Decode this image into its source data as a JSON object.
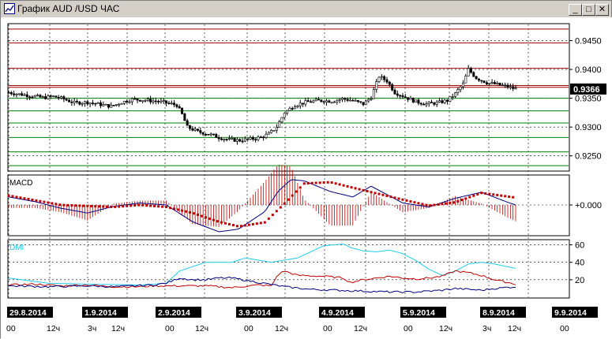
{
  "window": {
    "title": "График AUD /USD ЧАС",
    "minimize_label": "_",
    "maximize_label": "□",
    "close_label": "✕"
  },
  "colors": {
    "background": "#ffffff",
    "candles": "#000000",
    "resistance": "#a00000",
    "support": "#008000",
    "macd_line": "#000080",
    "macd_signal": "#c00000",
    "dmi_adx": "#22ccee",
    "dmi_plus": "#c00000",
    "dmi_minus": "#000080",
    "bubble": "#000000"
  },
  "chart_data": [
    {
      "type": "candlestick",
      "panel": "price",
      "ylim": [
        0.9225,
        0.9478
      ],
      "yticks": [
        0.925,
        0.93,
        0.935,
        0.94,
        0.945
      ],
      "ytick_labels": [
        "0.9250",
        "0.9300",
        "0.9350",
        "0.9400",
        "0.9450"
      ],
      "current_price": 0.9366,
      "current_price_label": "0.9366",
      "resistance_levels": [
        0.947,
        0.9446,
        0.9402,
        0.9372,
        0.9369
      ],
      "support_levels": [
        0.935,
        0.9328,
        0.9307,
        0.9282,
        0.9257,
        0.9233
      ],
      "close_path": [
        [
          0,
          0.936
        ],
        [
          8,
          0.9357
        ],
        [
          18,
          0.9354
        ],
        [
          26,
          0.9351
        ],
        [
          34,
          0.9353
        ],
        [
          40,
          0.935
        ],
        [
          50,
          0.9342
        ],
        [
          60,
          0.9343
        ],
        [
          70,
          0.9339
        ],
        [
          78,
          0.9336
        ],
        [
          86,
          0.9343
        ],
        [
          94,
          0.9348
        ],
        [
          102,
          0.9347
        ],
        [
          112,
          0.9345
        ],
        [
          120,
          0.9342
        ],
        [
          128,
          0.9338
        ],
        [
          132,
          0.9322
        ],
        [
          136,
          0.93
        ],
        [
          144,
          0.9292
        ],
        [
          152,
          0.9288
        ],
        [
          160,
          0.9282
        ],
        [
          168,
          0.9278
        ],
        [
          176,
          0.9277
        ],
        [
          184,
          0.9279
        ],
        [
          192,
          0.9282
        ],
        [
          198,
          0.9288
        ],
        [
          204,
          0.93
        ],
        [
          210,
          0.9325
        ],
        [
          218,
          0.9338
        ],
        [
          226,
          0.9343
        ],
        [
          236,
          0.9346
        ],
        [
          246,
          0.9345
        ],
        [
          254,
          0.9349
        ],
        [
          262,
          0.9346
        ],
        [
          270,
          0.934
        ],
        [
          276,
          0.9352
        ],
        [
          282,
          0.9388
        ],
        [
          288,
          0.938
        ],
        [
          294,
          0.936
        ],
        [
          302,
          0.9352
        ],
        [
          310,
          0.9344
        ],
        [
          318,
          0.934
        ],
        [
          326,
          0.9342
        ],
        [
          334,
          0.9346
        ],
        [
          340,
          0.9358
        ],
        [
          346,
          0.9375
        ],
        [
          350,
          0.94
        ],
        [
          356,
          0.9385
        ],
        [
          364,
          0.9377
        ],
        [
          372,
          0.9374
        ],
        [
          380,
          0.937
        ],
        [
          386,
          0.9366
        ]
      ]
    },
    {
      "type": "line",
      "panel": "macd",
      "title": "MACD",
      "ytick_labels": [
        "+0.000"
      ],
      "macd_path": [
        [
          0,
          1.2
        ],
        [
          20,
          0.5
        ],
        [
          40,
          -0.5
        ],
        [
          60,
          -1.2
        ],
        [
          80,
          -0.2
        ],
        [
          100,
          0.3
        ],
        [
          120,
          0.0
        ],
        [
          140,
          -2.5
        ],
        [
          160,
          -4.0
        ],
        [
          175,
          -3.6
        ],
        [
          195,
          -1.0
        ],
        [
          205,
          2.0
        ],
        [
          215,
          3.8
        ],
        [
          225,
          3.6
        ],
        [
          245,
          2.0
        ],
        [
          262,
          1.2
        ],
        [
          276,
          2.8
        ],
        [
          300,
          0.3
        ],
        [
          320,
          -0.3
        ],
        [
          340,
          1.0
        ],
        [
          360,
          1.9
        ],
        [
          380,
          0.4
        ],
        [
          386,
          0.0
        ]
      ],
      "signal_path": [
        [
          0,
          1.4
        ],
        [
          40,
          0.0
        ],
        [
          80,
          -0.3
        ],
        [
          100,
          0.0
        ],
        [
          120,
          -0.3
        ],
        [
          140,
          -1.2
        ],
        [
          160,
          -2.5
        ],
        [
          175,
          -3.2
        ],
        [
          195,
          -2.6
        ],
        [
          210,
          0.2
        ],
        [
          225,
          3.2
        ],
        [
          245,
          3.4
        ],
        [
          270,
          2.2
        ],
        [
          300,
          0.8
        ],
        [
          320,
          -0.1
        ],
        [
          340,
          0.4
        ],
        [
          360,
          1.8
        ],
        [
          386,
          1.1
        ]
      ]
    },
    {
      "type": "line",
      "panel": "dmi",
      "title": "DMI",
      "ylim": [
        0,
        65
      ],
      "yticks": [
        20,
        40,
        60
      ],
      "ytick_labels": [
        "20",
        "40",
        "60"
      ],
      "adx_path": [
        [
          0,
          22
        ],
        [
          30,
          16
        ],
        [
          60,
          15
        ],
        [
          100,
          14
        ],
        [
          120,
          16
        ],
        [
          130,
          30
        ],
        [
          150,
          40
        ],
        [
          170,
          40
        ],
        [
          180,
          45
        ],
        [
          200,
          40
        ],
        [
          220,
          45
        ],
        [
          240,
          59
        ],
        [
          255,
          61
        ],
        [
          260,
          57
        ],
        [
          270,
          53
        ],
        [
          280,
          52
        ],
        [
          290,
          54
        ],
        [
          300,
          50
        ],
        [
          310,
          42
        ],
        [
          320,
          32
        ],
        [
          330,
          25
        ],
        [
          340,
          30
        ],
        [
          350,
          38
        ],
        [
          360,
          40
        ],
        [
          370,
          38
        ],
        [
          386,
          33
        ]
      ],
      "plus_path": [
        [
          0,
          14
        ],
        [
          20,
          15
        ],
        [
          40,
          13
        ],
        [
          60,
          14
        ],
        [
          80,
          12
        ],
        [
          100,
          12
        ],
        [
          110,
          13
        ],
        [
          130,
          13
        ],
        [
          150,
          13
        ],
        [
          170,
          11
        ],
        [
          190,
          14
        ],
        [
          200,
          13
        ],
        [
          205,
          26
        ],
        [
          210,
          30
        ],
        [
          220,
          25
        ],
        [
          240,
          24
        ],
        [
          255,
          22
        ],
        [
          260,
          17
        ],
        [
          270,
          20
        ],
        [
          280,
          22
        ],
        [
          290,
          24
        ],
        [
          300,
          22
        ],
        [
          310,
          21
        ],
        [
          320,
          22
        ],
        [
          330,
          24
        ],
        [
          340,
          30
        ],
        [
          350,
          28
        ],
        [
          360,
          25
        ],
        [
          370,
          20
        ],
        [
          386,
          15
        ]
      ],
      "minus_path": [
        [
          0,
          13
        ],
        [
          30,
          12
        ],
        [
          60,
          13
        ],
        [
          80,
          12
        ],
        [
          110,
          14
        ],
        [
          120,
          16
        ],
        [
          130,
          22
        ],
        [
          140,
          20
        ],
        [
          150,
          20
        ],
        [
          160,
          22
        ],
        [
          170,
          22
        ],
        [
          190,
          17
        ],
        [
          210,
          12
        ],
        [
          230,
          9
        ],
        [
          250,
          8
        ],
        [
          270,
          7
        ],
        [
          290,
          6
        ],
        [
          310,
          6
        ],
        [
          330,
          8
        ],
        [
          340,
          10
        ],
        [
          350,
          9
        ],
        [
          360,
          8
        ],
        [
          370,
          10
        ],
        [
          386,
          12
        ]
      ]
    }
  ],
  "x_axis": {
    "date_labels": [
      "29.8.2014",
      "1.9.2014",
      "2.9.2014",
      "3.9.2014",
      "4.9.2014",
      "5.9.2014",
      "8.9.2014",
      "9.9.2014"
    ],
    "hour_labels": [
      {
        "t": "00",
        "i": 0
      },
      {
        "t": "12ч",
        "i": 1
      },
      {
        "t": "3ч",
        "i": 2
      },
      {
        "t": "12ч",
        "i": 3
      },
      {
        "t": "00",
        "i": 4
      },
      {
        "t": "12ч",
        "i": 5
      },
      {
        "t": "00",
        "i": 6
      },
      {
        "t": "12ч",
        "i": 7
      },
      {
        "t": "00",
        "i": 8
      },
      {
        "t": "12ч",
        "i": 9
      },
      {
        "t": "00",
        "i": 10
      },
      {
        "t": "12ч",
        "i": 11
      },
      {
        "t": "3ч",
        "i": 12
      },
      {
        "t": "12ч",
        "i": 13
      },
      {
        "t": "00",
        "i": 14
      }
    ]
  }
}
